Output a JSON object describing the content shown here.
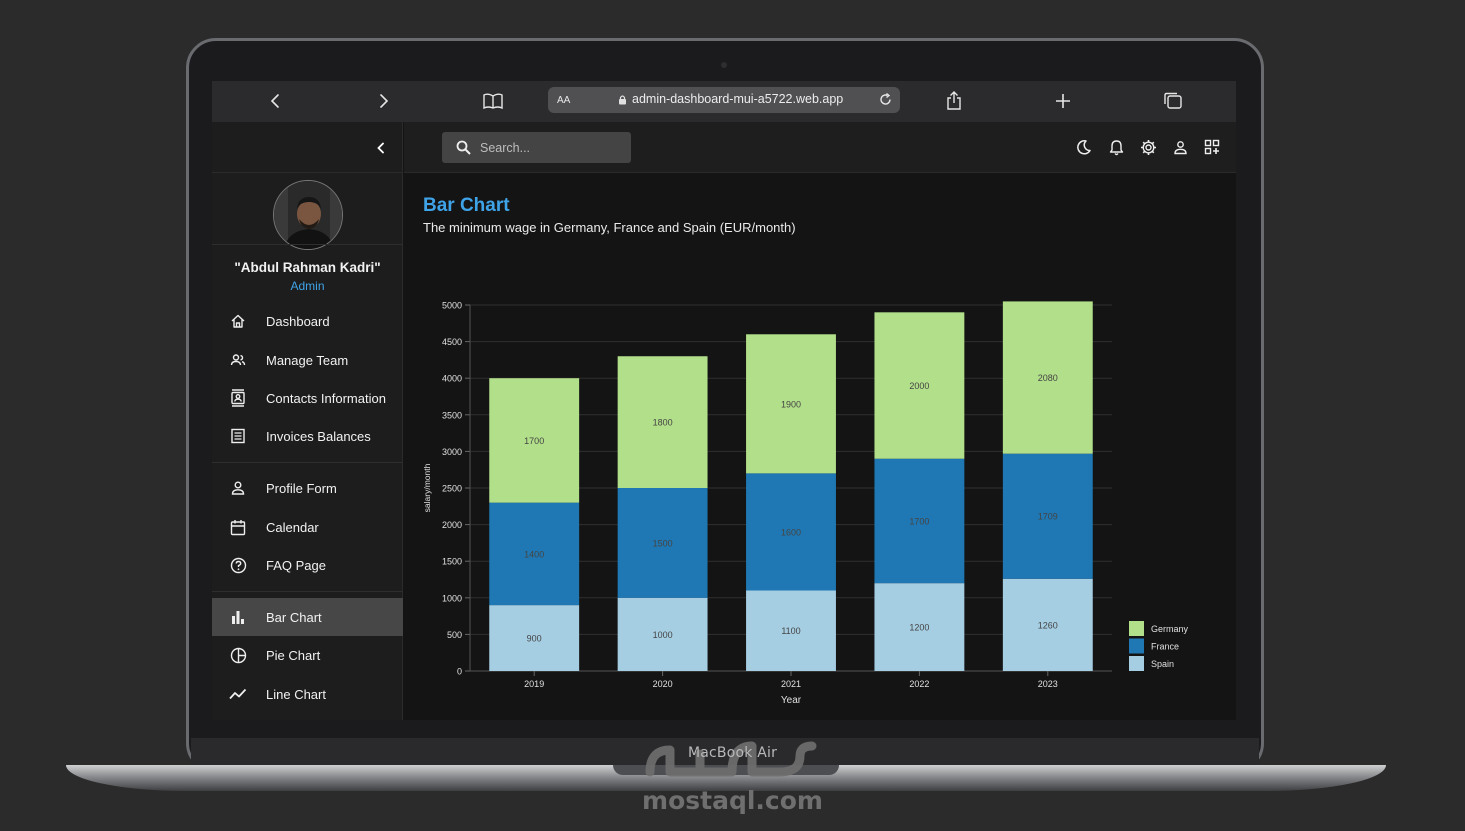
{
  "device": {
    "model_label": "MacBook Air"
  },
  "watermark": {
    "text": "mostaql.com"
  },
  "browser": {
    "text_size_label": "AA",
    "url": "admin-dashboard-mui-a5722.web.app"
  },
  "sidebar": {
    "user_name": "\"Abdul Rahman Kadri\"",
    "user_role": "Admin",
    "items": [
      {
        "label": "Dashboard",
        "icon": "home-icon"
      },
      {
        "label": "Manage Team",
        "icon": "people-icon"
      },
      {
        "label": "Contacts Information",
        "icon": "contacts-icon"
      },
      {
        "label": "Invoices Balances",
        "icon": "receipt-icon"
      },
      {
        "label": "Profile Form",
        "icon": "person-icon"
      },
      {
        "label": "Calendar",
        "icon": "calendar-icon"
      },
      {
        "label": "FAQ Page",
        "icon": "help-icon"
      },
      {
        "label": "Bar Chart",
        "icon": "bar-chart-icon",
        "active": true
      },
      {
        "label": "Pie Chart",
        "icon": "pie-chart-icon"
      },
      {
        "label": "Line Chart",
        "icon": "line-chart-icon"
      }
    ]
  },
  "topbar": {
    "search_placeholder": "Search...",
    "icons": [
      "dark-mode-icon",
      "notifications-icon",
      "settings-icon",
      "person-icon",
      "apps-icon"
    ]
  },
  "page": {
    "title": "Bar Chart",
    "subtitle": "The minimum wage in Germany, France and Spain (EUR/month)"
  },
  "colors": {
    "accent": "#3fa3e8",
    "Spain": "#a6cee3",
    "France": "#1f78b4",
    "Germany": "#b2df8a"
  },
  "chart_data": {
    "type": "bar",
    "stacked": true,
    "categories": [
      "2019",
      "2020",
      "2021",
      "2022",
      "2023"
    ],
    "series": [
      {
        "name": "Spain",
        "values": [
          900,
          1000,
          1100,
          1200,
          1260
        ]
      },
      {
        "name": "France",
        "values": [
          1400,
          1500,
          1600,
          1700,
          1709
        ]
      },
      {
        "name": "Germany",
        "values": [
          1700,
          1800,
          1900,
          2000,
          2080
        ]
      }
    ],
    "xlabel": "Year",
    "ylabel": "salary/month",
    "ylim": [
      0,
      5000
    ],
    "yticks": [
      0,
      500,
      1000,
      1500,
      2000,
      2500,
      3000,
      3500,
      4000,
      4500,
      5000
    ],
    "grid": true,
    "legend": "bottom-right",
    "legend_order": [
      "Germany",
      "France",
      "Spain"
    ]
  }
}
